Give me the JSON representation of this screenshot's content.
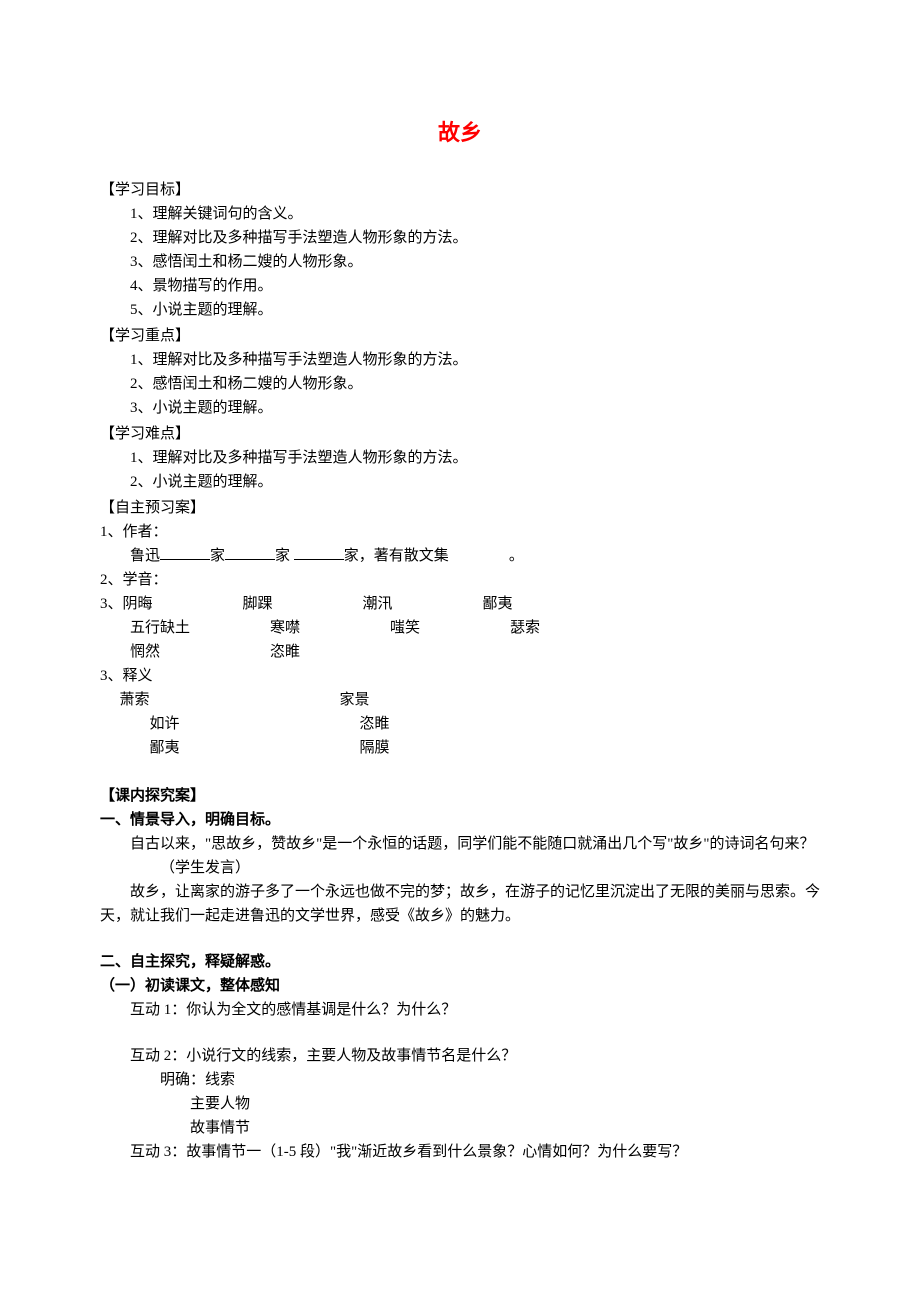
{
  "title": "故乡",
  "learning_objectives": {
    "label": "【学习目标】",
    "items": [
      "1、理解关键词句的含义。",
      "2、理解对比及多种描写手法塑造人物形象的方法。",
      "3、感悟闰土和杨二嫂的人物形象。",
      "4、景物描写的作用。",
      "5、小说主题的理解。"
    ]
  },
  "learning_focus": {
    "label": "【学习重点】",
    "items": [
      "1、理解对比及多种描写手法塑造人物形象的方法。",
      "2、感悟闰土和杨二嫂的人物形象。",
      "3、小说主题的理解。"
    ]
  },
  "learning_difficulties": {
    "label": "【学习难点】",
    "items": [
      "1、理解对比及多种描写手法塑造人物形象的方法。",
      "2、小说主题的理解。"
    ]
  },
  "preview": {
    "label": "【自主预习案】",
    "author_label": "1、作者：",
    "author_line_prefix": "鲁迅",
    "author_line_mid1": "家",
    "author_line_mid2": "家 ",
    "author_line_mid3": "家，著有散文集",
    "author_line_suffix": "。",
    "phonetics_label": "2、学音：",
    "phonetics_rows": [
      {
        "prefix": "3、",
        "cells": [
          "阴晦",
          "脚踝",
          "潮汛",
          "鄙夷"
        ]
      },
      {
        "prefix": "",
        "cells": [
          "五行缺土",
          "寒噤",
          "嗤笑",
          "瑟索"
        ]
      },
      {
        "prefix": "",
        "cells": [
          "惘然",
          "恣睢",
          "",
          ""
        ]
      }
    ],
    "definitions_label": "3、释义",
    "definitions": [
      {
        "left": "萧索",
        "right": "家景"
      },
      {
        "left": "如许",
        "right": "恣睢"
      },
      {
        "left": "鄙夷",
        "right": "隔膜"
      }
    ]
  },
  "inquiry": {
    "label": "【课内探究案】",
    "scene": {
      "heading": "一、情景导入，明确目标。",
      "para1": "自古以来，\"思故乡，赞故乡\"是一个永恒的话题，同学们能不能随口就涌出几个写\"故乡\"的诗词名句来？",
      "para2": "（学生发言）",
      "para3": "故乡，让离家的游子多了一个永远也做不完的梦；故乡，在游子的记忆里沉淀出了无限的美丽与思索。今天，就让我们一起走进鲁迅的文学世界，感受《故乡》的魅力。"
    },
    "explore": {
      "heading": "二、自主探究，释疑解惑。",
      "sub": "（一）初读课文，整体感知",
      "hudong1": "互动 1：你认为全文的感情基调是什么？为什么？",
      "hudong2": "互动 2：小说行文的线索，主要人物及故事情节名是什么？",
      "mingque": "明确：线索",
      "zhuyao": "主要人物",
      "gushi": "故事情节",
      "hudong3": "互动 3：故事情节一（1-5 段）\"我\"渐近故乡看到什么景象？心情如何？为什么要写？"
    }
  },
  "colors": {
    "title_color": "#ff0000",
    "text_color": "#000000",
    "background_color": "#ffffff"
  },
  "typography": {
    "title_fontsize": 22,
    "body_fontsize": 15,
    "font_family": "SimSun"
  }
}
